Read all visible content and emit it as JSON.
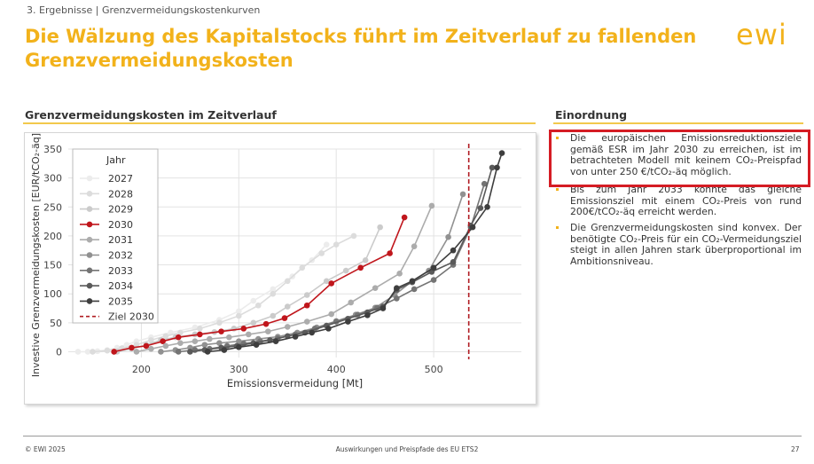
{
  "header": {
    "breadcrumb": "3. Ergebnisse | Grenzvermeidungskostenkurven",
    "title": "Die Wälzung des Kapitalstocks führt im Zeitverlauf zu fallenden Grenzvermeidungskosten",
    "logo_text": "ewi"
  },
  "left_panel": {
    "heading": "Grenzvermeidungskosten im Zeitverlauf"
  },
  "right_panel": {
    "heading": "Einordnung",
    "bullets": [
      "Die europäischen Emissionsreduktionsziele gemäß ESR im Jahr 2030 zu erreichen, ist im betrachteten Modell mit keinem CO₂-Preispfad von unter 250 €/tCO₂-äq möglich.",
      "Bis zum Jahr 2033 könnte das gleiche Emissionsziel mit einem CO₂-Preis von rund 200€/tCO₂-äq erreicht werden.",
      "Die Grenzvermeidungskosten sind konvex. Der benötigte CO₂-Preis für ein CO₂-Vermeidungsziel steigt in allen Jahren stark überproportional im Ambitionsniveau."
    ]
  },
  "footer": {
    "left": "© EWI 2025",
    "center": "Auswirkungen und Preispfade des EU ETS2",
    "page": "27"
  },
  "colors": {
    "accent": "#f2b21b",
    "highlight_box": "#d51c24",
    "target_line": "#b01c22"
  },
  "chart_data": {
    "type": "line",
    "xlabel": "Emissionsvermeidung [Mt]",
    "ylabel": "Investive Grenzvermeidungskosten [EUR/tCO₂-äq]",
    "xlim": [
      125,
      590
    ],
    "ylim": [
      -10,
      350
    ],
    "xticks": [
      200,
      300,
      400,
      500
    ],
    "yticks": [
      0,
      50,
      100,
      150,
      200,
      250,
      300,
      350
    ],
    "grid": true,
    "legend": {
      "title": "Jahr",
      "placement": "top-left"
    },
    "target": {
      "name": "Ziel 2030",
      "x": 536,
      "color": "#b01c22",
      "style": "dashed"
    },
    "series": [
      {
        "name": "2027",
        "color": "#ececec",
        "points": [
          [
            135,
            0
          ],
          [
            145,
            0
          ],
          [
            155,
            1
          ],
          [
            165,
            3
          ],
          [
            175,
            7
          ],
          [
            185,
            12
          ],
          [
            195,
            18
          ],
          [
            210,
            25
          ],
          [
            230,
            33
          ],
          [
            255,
            42
          ],
          [
            280,
            55
          ],
          [
            300,
            70
          ],
          [
            315,
            88
          ],
          [
            335,
            108
          ],
          [
            355,
            130
          ],
          [
            375,
            158
          ],
          [
            390,
            185
          ]
        ]
      },
      {
        "name": "2028",
        "color": "#dcdcdc",
        "points": [
          [
            150,
            0
          ],
          [
            165,
            2
          ],
          [
            180,
            6
          ],
          [
            195,
            12
          ],
          [
            210,
            20
          ],
          [
            225,
            27
          ],
          [
            240,
            33
          ],
          [
            260,
            40
          ],
          [
            280,
            50
          ],
          [
            300,
            62
          ],
          [
            320,
            80
          ],
          [
            335,
            100
          ],
          [
            350,
            122
          ],
          [
            365,
            145
          ],
          [
            385,
            170
          ],
          [
            400,
            185
          ],
          [
            418,
            200
          ]
        ]
      },
      {
        "name": "2029",
        "color": "#cbcbcb",
        "points": [
          [
            175,
            0
          ],
          [
            190,
            5
          ],
          [
            205,
            12
          ],
          [
            220,
            20
          ],
          [
            235,
            25
          ],
          [
            255,
            30
          ],
          [
            275,
            34
          ],
          [
            295,
            40
          ],
          [
            315,
            50
          ],
          [
            335,
            62
          ],
          [
            350,
            78
          ],
          [
            370,
            98
          ],
          [
            390,
            122
          ],
          [
            410,
            140
          ],
          [
            430,
            158
          ],
          [
            445,
            215
          ]
        ]
      },
      {
        "name": "2030",
        "color": "#c0161c",
        "points": [
          [
            172,
            0
          ],
          [
            190,
            7
          ],
          [
            205,
            10
          ],
          [
            222,
            18
          ],
          [
            238,
            25
          ],
          [
            260,
            30
          ],
          [
            282,
            35
          ],
          [
            305,
            40
          ],
          [
            328,
            48
          ],
          [
            347,
            58
          ],
          [
            370,
            80
          ],
          [
            395,
            118
          ],
          [
            425,
            145
          ],
          [
            455,
            170
          ],
          [
            470,
            232
          ]
        ]
      },
      {
        "name": "2031",
        "color": "#acacac",
        "points": [
          [
            195,
            0
          ],
          [
            210,
            5
          ],
          [
            225,
            10
          ],
          [
            240,
            15
          ],
          [
            255,
            18
          ],
          [
            270,
            22
          ],
          [
            290,
            25
          ],
          [
            310,
            30
          ],
          [
            330,
            35
          ],
          [
            350,
            43
          ],
          [
            370,
            52
          ],
          [
            395,
            65
          ],
          [
            415,
            85
          ],
          [
            440,
            110
          ],
          [
            465,
            135
          ],
          [
            480,
            182
          ],
          [
            498,
            252
          ]
        ]
      },
      {
        "name": "2032",
        "color": "#919191",
        "points": [
          [
            220,
            0
          ],
          [
            235,
            3
          ],
          [
            250,
            7
          ],
          [
            265,
            12
          ],
          [
            280,
            15
          ],
          [
            300,
            18
          ],
          [
            320,
            22
          ],
          [
            340,
            26
          ],
          [
            360,
            33
          ],
          [
            380,
            42
          ],
          [
            400,
            53
          ],
          [
            420,
            64
          ],
          [
            440,
            76
          ],
          [
            460,
            98
          ],
          [
            478,
            122
          ],
          [
            495,
            140
          ],
          [
            515,
            198
          ],
          [
            530,
            272
          ]
        ]
      },
      {
        "name": "2033",
        "color": "#747474",
        "points": [
          [
            238,
            0
          ],
          [
            255,
            3
          ],
          [
            270,
            5
          ],
          [
            288,
            10
          ],
          [
            305,
            14
          ],
          [
            322,
            18
          ],
          [
            340,
            23
          ],
          [
            358,
            30
          ],
          [
            378,
            40
          ],
          [
            400,
            52
          ],
          [
            422,
            64
          ],
          [
            442,
            76
          ],
          [
            462,
            92
          ],
          [
            480,
            108
          ],
          [
            500,
            124
          ],
          [
            520,
            150
          ],
          [
            538,
            215
          ],
          [
            552,
            290
          ]
        ]
      },
      {
        "name": "2034",
        "color": "#5a5a5a",
        "points": [
          [
            250,
            0
          ],
          [
            265,
            3
          ],
          [
            282,
            7
          ],
          [
            298,
            10
          ],
          [
            315,
            15
          ],
          [
            332,
            20
          ],
          [
            350,
            27
          ],
          [
            368,
            33
          ],
          [
            390,
            45
          ],
          [
            412,
            57
          ],
          [
            432,
            68
          ],
          [
            448,
            78
          ],
          [
            462,
            107
          ],
          [
            478,
            120
          ],
          [
            498,
            138
          ],
          [
            520,
            155
          ],
          [
            538,
            218
          ],
          [
            548,
            248
          ],
          [
            560,
            318
          ]
        ]
      },
      {
        "name": "2035",
        "color": "#3e3e3e",
        "points": [
          [
            268,
            0
          ],
          [
            285,
            3
          ],
          [
            300,
            8
          ],
          [
            318,
            12
          ],
          [
            338,
            18
          ],
          [
            358,
            26
          ],
          [
            375,
            33
          ],
          [
            392,
            40
          ],
          [
            412,
            52
          ],
          [
            432,
            63
          ],
          [
            448,
            75
          ],
          [
            462,
            110
          ],
          [
            478,
            122
          ],
          [
            500,
            145
          ],
          [
            520,
            175
          ],
          [
            540,
            215
          ],
          [
            555,
            250
          ],
          [
            565,
            318
          ],
          [
            570,
            343
          ]
        ]
      }
    ]
  }
}
